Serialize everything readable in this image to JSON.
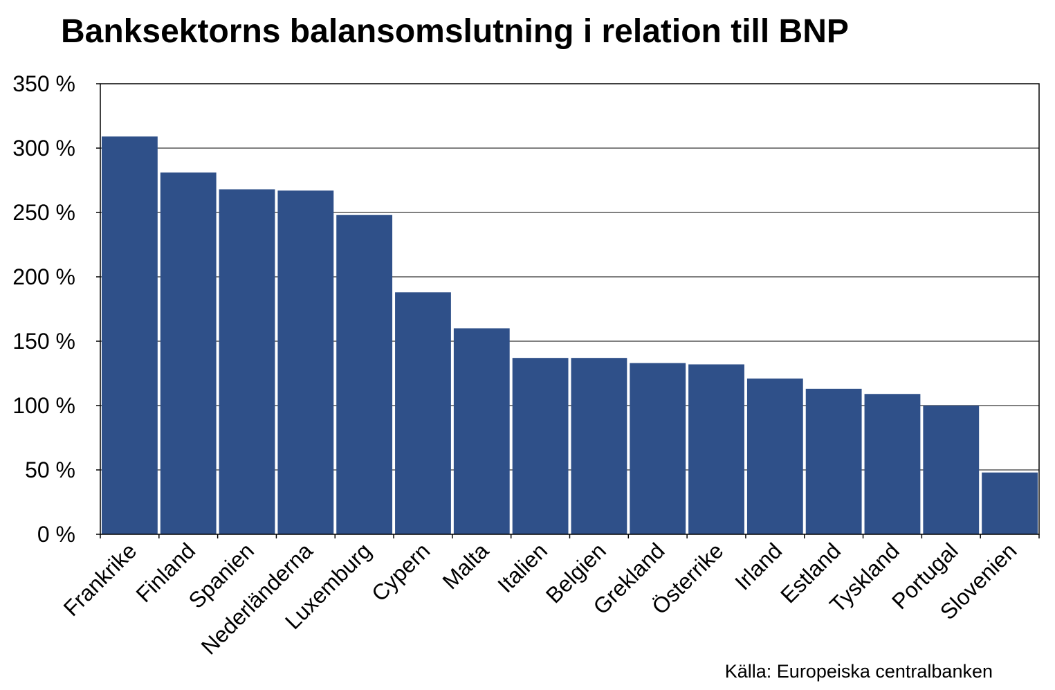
{
  "chart_data": {
    "type": "bar",
    "title": "Banksektorns balansomslutning i relation till BNP",
    "categories": [
      "Frankrike",
      "Finland",
      "Spanien",
      "Nederländerna",
      "Luxemburg",
      "Cypern",
      "Malta",
      "Italien",
      "Belgien",
      "Grekland",
      "Österrike",
      "Irland",
      "Estland",
      "Tyskland",
      "Portugal",
      "Slovenien"
    ],
    "values": [
      309,
      281,
      268,
      267,
      248,
      188,
      160,
      137,
      137,
      133,
      132,
      121,
      113,
      109,
      100,
      48
    ],
    "ylim": [
      0,
      350
    ],
    "yticks": [
      0,
      50,
      100,
      150,
      200,
      250,
      300,
      350
    ],
    "ytick_suffix": " %",
    "ytick_labels": [
      "0 %",
      "50 %",
      "100 %",
      "150 %",
      "200 %",
      "250 %",
      "300 %",
      "350 %"
    ],
    "xlabel": "",
    "ylabel": "",
    "grid": true,
    "legend": "none",
    "bar_color": "#2f5089",
    "source": "Källa: Europeiska centralbanken"
  }
}
